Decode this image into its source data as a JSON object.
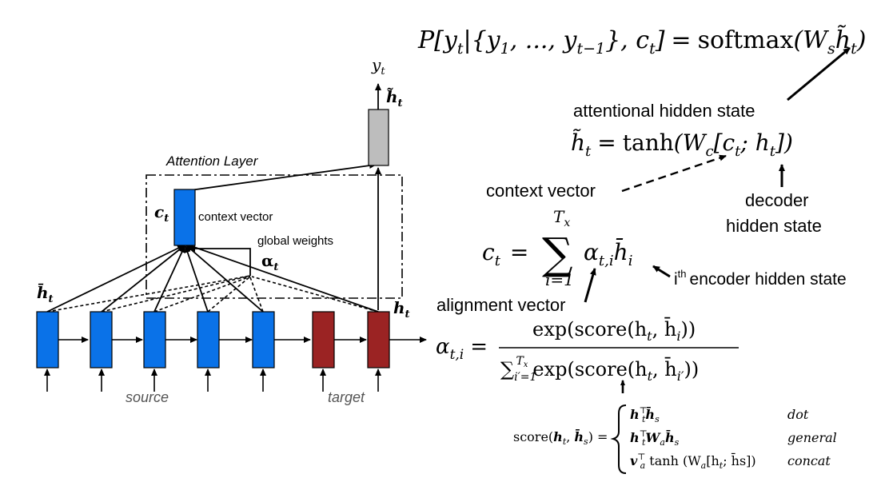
{
  "top_equation": {
    "lhs": "P[y",
    "lhs_sub": "t",
    "given": "|{y",
    "given_sub1": "1",
    "dots": ", ..., y",
    "given_sub2": "t−1",
    "close": "}, c",
    "c_sub": "t",
    "close2": "]",
    "eq": "=",
    "rhs_fn": "softmax",
    "rhs_open": "(W",
    "rhs_sub": "s",
    "rhs_h": "h̃",
    "rhs_h_sub": "t",
    "rhs_close": ")"
  },
  "labels": {
    "attentional_hidden_state": "attentional hidden state",
    "context_vector": "context vector",
    "decoder_hidden_state_line1": "decoder",
    "decoder_hidden_state_line2": "hidden state",
    "encoder_hidden_state_sup": "th",
    "encoder_hidden_state_i": "i",
    "encoder_hidden_state": "encoder hidden state",
    "alignment_vector": "alignment vector"
  },
  "attentional_equation": {
    "h": "h̃",
    "h_sub": "t",
    "eq": "=",
    "fn": "tanh",
    "open": "(W",
    "w_sub": "c",
    "bracket_open": "[c",
    "c_sub": "t",
    "sep": "; h",
    "h2_sub": "t",
    "bracket_close": "])"
  },
  "context_equation": {
    "c": "c",
    "c_sub": "t",
    "eq": "=",
    "sum_top": "T",
    "sum_top_sub": "x",
    "sum_bottom": "i=1",
    "alpha": "α",
    "alpha_sub": "t,i",
    "hbar": "h̄",
    "hbar_sub": "i"
  },
  "alignment_equation": {
    "alpha": "α",
    "alpha_sub": "t,i",
    "eq": "=",
    "numerator": "exp(score(h",
    "num_sub1": "t",
    "num_mid": ", h̄",
    "num_sub2": "i",
    "num_close": "))",
    "den_sum": "∑",
    "den_sum_top": "T",
    "den_sum_top_sub": "x",
    "den_sum_bottom": "i′=1",
    "den_exp": "exp(score(h",
    "den_sub1": "t",
    "den_mid": ", h̄",
    "den_sub2": "i′",
    "den_close": "))"
  },
  "score_equation": {
    "lhs": "score(",
    "lhs_h": "h",
    "lhs_h_sub": "t",
    "lhs_comma": ", ",
    "lhs_hbar": "h̄",
    "lhs_hbar_sub": "s",
    "lhs_close": ") =",
    "rows": [
      {
        "formula": "h",
        "sub": "t",
        "sup": "⊤",
        "rest": "h̄",
        "rest_sub": "s",
        "rest2": "",
        "rest2_sub": "",
        "tail": "",
        "name": "dot"
      },
      {
        "formula": "h",
        "sub": "t",
        "sup": "⊤",
        "rest": "W",
        "rest_sub": "a",
        "rest2": "h̄",
        "rest2_sub": "s",
        "tail": "",
        "name": "general"
      },
      {
        "formula": "v",
        "sub": "a",
        "sup": "⊤",
        "rest": " tanh (W",
        "rest_sub": "a",
        "rest2": "[h",
        "rest2_sub": "t",
        "tail": "; h̄s])",
        "name": "concat"
      }
    ]
  },
  "left_diagram": {
    "y_out": "y",
    "y_out_sub": "t",
    "h_tilde": "h̃",
    "h_tilde_sub": "t",
    "attention_layer": "Attention Layer",
    "c": "c",
    "c_sub": "t",
    "context_vector": "context vector",
    "global_weights": "global weights",
    "alpha": "α",
    "alpha_sub": "t",
    "hbar": "h̄",
    "hbar_sub": "t",
    "h": "h",
    "h_sub": "t",
    "source": "source",
    "target": "target"
  },
  "colors": {
    "encoder": "#0a72e8",
    "decoder": "#9b2323",
    "attentional": "#bdbdbd",
    "text": "#000000"
  }
}
